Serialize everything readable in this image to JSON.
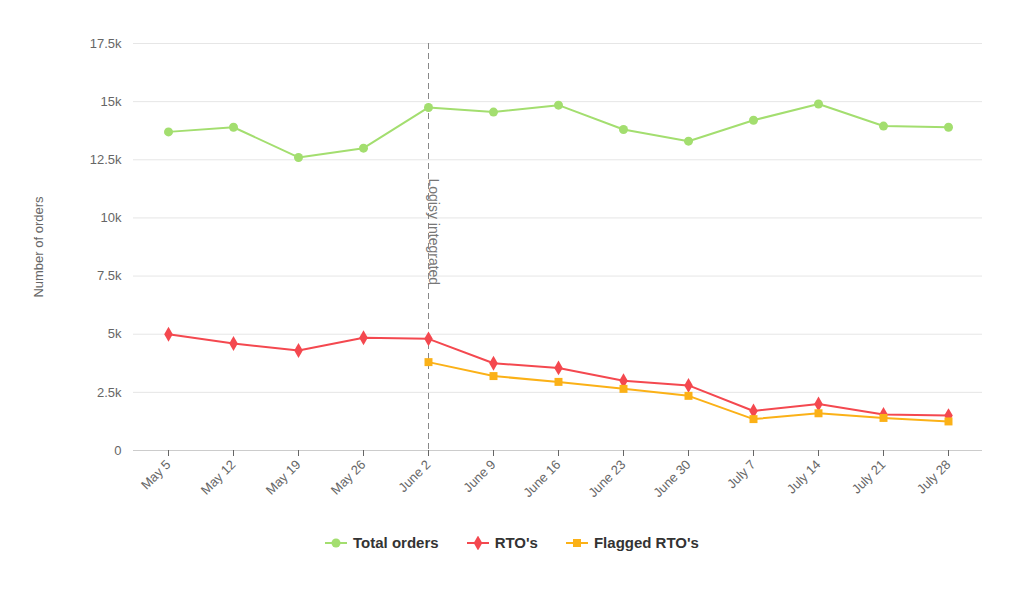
{
  "chart_data": {
    "type": "line",
    "y_label": "Number of orders",
    "categories": [
      "May 5",
      "May 12",
      "May 19",
      "May 26",
      "June 2",
      "June 9",
      "June 16",
      "June 23",
      "June 30",
      "July 7",
      "July 14",
      "July 21",
      "July 28"
    ],
    "series": [
      {
        "name": "Total orders",
        "color": "#a3de6f",
        "marker": "circle",
        "values": [
          13700,
          13900,
          12600,
          13000,
          14750,
          14550,
          14850,
          13800,
          13300,
          14200,
          14900,
          13950,
          13900
        ]
      },
      {
        "name": "RTO's",
        "color": "#f4484f",
        "marker": "diamond",
        "values": [
          5000,
          4600,
          4300,
          4850,
          4800,
          3750,
          3550,
          3000,
          2800,
          1700,
          2000,
          1550,
          1500
        ]
      },
      {
        "name": "Flagged RTO's",
        "color": "#fbb117",
        "marker": "square",
        "values": [
          null,
          null,
          null,
          null,
          3800,
          3200,
          2950,
          2650,
          2350,
          1350,
          1600,
          1400,
          1250
        ]
      }
    ],
    "ylim": [
      0,
      17500
    ],
    "yticks": [
      0,
      {
        "value": 2500,
        "label": "2.5k"
      },
      {
        "value": 5000,
        "label": "5k"
      },
      {
        "value": 7500,
        "label": "7.5k"
      },
      {
        "value": 10000,
        "label": "10k"
      },
      {
        "value": 12500,
        "label": "12.5k"
      },
      {
        "value": 15000,
        "label": "15k"
      },
      {
        "value": 17500,
        "label": "17.5k"
      }
    ],
    "grid": true,
    "legend": "bottom",
    "annotations": [
      {
        "x": "June 2",
        "text": "Logisy integrated",
        "line_style": "dashed"
      }
    ]
  }
}
